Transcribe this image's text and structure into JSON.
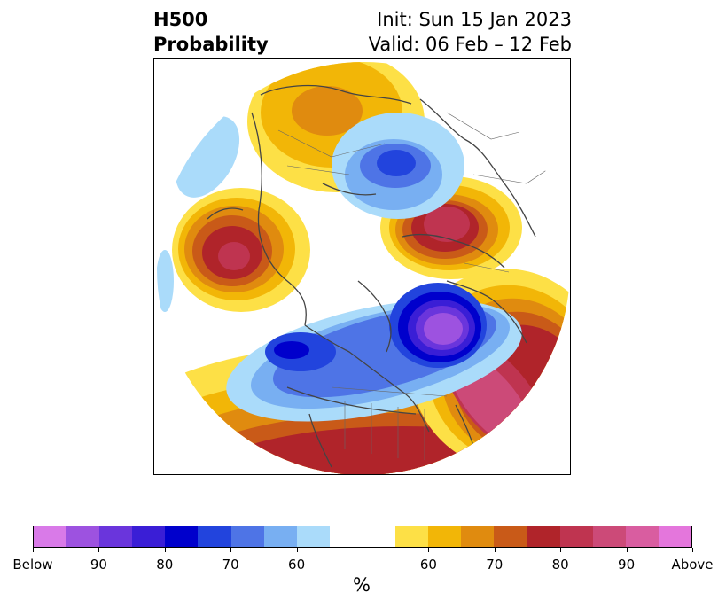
{
  "title": {
    "left_line1": "H500",
    "left_line2": "Probability",
    "right_line1": "Init: Sun 15 Jan 2023",
    "right_line2": "Valid: 06 Feb – 12 Feb"
  },
  "colorbar": {
    "unit": "%",
    "ticks": [
      "Below",
      "90",
      "80",
      "70",
      "60",
      "60",
      "70",
      "80",
      "90",
      "Above"
    ],
    "below_colors": [
      "#d97ae8",
      "#9d52e0",
      "#6a35dc",
      "#3a1ed6",
      "#0000cc",
      "#2244dd",
      "#4e74e6",
      "#78aff2",
      "#aadbfa"
    ],
    "neutral_color": "#ffffff",
    "above_colors": [
      "#fde046",
      "#f2b607",
      "#e08b0f",
      "#c95a18",
      "#b0242a",
      "#bf3450",
      "#cc4a78",
      "#d95da0",
      "#e476dc"
    ]
  }
}
